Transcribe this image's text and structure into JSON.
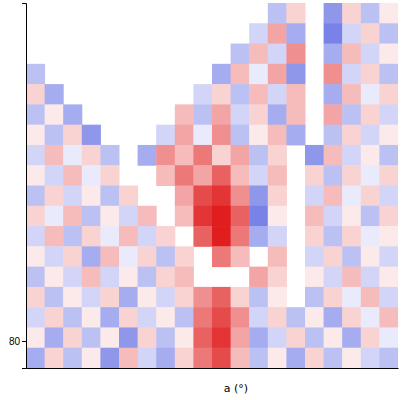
{
  "chart_data": {
    "type": "heatmap",
    "xlabel": "a (°)",
    "xlim": [
      0,
      40
    ],
    "ylim": [
      78,
      105
    ],
    "xticks": [],
    "yticks": [
      80
    ],
    "tick_labels": "y",
    "color_range": [
      -1,
      1
    ],
    "x": [
      1,
      3,
      5,
      7,
      9,
      11,
      13,
      15,
      17,
      19,
      21,
      23,
      25,
      27,
      29,
      31,
      33,
      35,
      37,
      39
    ],
    "y": [
      104.25,
      102.75,
      101.25,
      99.75,
      98.25,
      96.75,
      95.25,
      93.75,
      92.25,
      90.75,
      89.25,
      87.75,
      86.25,
      84.75,
      83.25,
      81.75,
      80.25,
      78.75
    ],
    "values": [
      [
        null,
        null,
        null,
        null,
        null,
        null,
        null,
        null,
        null,
        null,
        null,
        null,
        null,
        -0.3,
        0.2,
        null,
        -0.5,
        0.2,
        -0.3,
        0.1
      ],
      [
        null,
        null,
        null,
        null,
        null,
        null,
        null,
        null,
        null,
        null,
        null,
        null,
        -0.2,
        0.4,
        -0.4,
        null,
        -0.6,
        -0.2,
        0.2,
        -0.3
      ],
      [
        null,
        null,
        null,
        null,
        null,
        null,
        null,
        null,
        null,
        null,
        null,
        -0.3,
        0.3,
        -0.2,
        0.5,
        null,
        -0.4,
        0.3,
        -0.2,
        0.1
      ],
      [
        -0.3,
        null,
        null,
        null,
        null,
        null,
        null,
        null,
        null,
        null,
        -0.4,
        0.3,
        -0.1,
        0.4,
        -0.5,
        null,
        0.5,
        -0.2,
        0.2,
        -0.3
      ],
      [
        0.2,
        -0.4,
        null,
        null,
        null,
        null,
        null,
        null,
        null,
        -0.2,
        0.2,
        -0.3,
        0.3,
        -0.2,
        0.3,
        null,
        -0.4,
        0.3,
        -0.1,
        0.2
      ],
      [
        -0.3,
        0.1,
        -0.4,
        null,
        null,
        null,
        null,
        null,
        0.3,
        -0.3,
        0.4,
        -0.2,
        0.2,
        -0.4,
        0.3,
        null,
        0.4,
        -0.3,
        0.2,
        -0.2
      ],
      [
        0.1,
        -0.3,
        0.2,
        -0.5,
        null,
        null,
        null,
        -0.2,
        0.4,
        -0.1,
        0.5,
        -0.3,
        0.1,
        0.3,
        -0.4,
        null,
        -0.3,
        0.2,
        -0.2,
        0.1
      ],
      [
        -0.2,
        0.3,
        -0.1,
        0.2,
        -0.3,
        null,
        -0.4,
        0.5,
        0.3,
        0.6,
        0.2,
        0.4,
        -0.3,
        0.2,
        null,
        -0.5,
        0.3,
        -0.2,
        0.1,
        -0.3
      ],
      [
        0.1,
        -0.2,
        0.3,
        -0.1,
        0.2,
        null,
        null,
        0.3,
        0.6,
        0.4,
        0.7,
        0.3,
        -0.2,
        0.3,
        null,
        0.2,
        -0.3,
        0.2,
        -0.1,
        0.2
      ],
      [
        -0.3,
        0.2,
        -0.2,
        0.1,
        -0.3,
        0.2,
        null,
        null,
        0.4,
        0.8,
        0.9,
        0.5,
        -0.5,
        0.2,
        null,
        -0.2,
        0.3,
        -0.1,
        0.2,
        -0.2
      ],
      [
        0.2,
        -0.1,
        0.3,
        -0.3,
        0.1,
        -0.2,
        0.3,
        null,
        0.3,
        0.9,
        1.0,
        0.7,
        -0.6,
        0.1,
        null,
        0.3,
        -0.2,
        0.1,
        -0.3,
        0.2
      ],
      [
        -0.2,
        0.3,
        -0.3,
        0.2,
        -0.1,
        0.3,
        -0.2,
        0.2,
        null,
        0.7,
        1.0,
        0.6,
        -0.4,
        -0.2,
        null,
        0.2,
        -0.3,
        0.2,
        -0.1,
        0.1
      ],
      [
        0.1,
        -0.2,
        0.2,
        -0.4,
        0.3,
        -0.1,
        0.2,
        -0.3,
        0.2,
        null,
        0.6,
        0.3,
        null,
        0.3,
        null,
        -0.2,
        0.2,
        -0.3,
        0.1,
        -0.2
      ],
      [
        -0.3,
        0.1,
        -0.2,
        0.3,
        -0.2,
        0.1,
        -0.3,
        0.2,
        0.3,
        null,
        null,
        null,
        0.4,
        0.2,
        null,
        0.1,
        -0.2,
        0.3,
        -0.2,
        0.1
      ],
      [
        0.2,
        -0.3,
        0.1,
        -0.2,
        0.2,
        -0.4,
        0.1,
        -0.2,
        0.2,
        0.5,
        0.7,
        0.2,
        -0.3,
        0.1,
        null,
        -0.3,
        0.2,
        -0.1,
        0.3,
        -0.2
      ],
      [
        -0.2,
        0.2,
        -0.3,
        0.1,
        -0.4,
        0.2,
        -0.2,
        0.1,
        -0.3,
        0.6,
        0.8,
        0.5,
        -0.2,
        0.2,
        -0.3,
        0.1,
        -0.4,
        0.2,
        -0.1,
        0.3
      ],
      [
        0.1,
        -0.4,
        0.2,
        -0.3,
        0.1,
        -0.5,
        0.2,
        -0.3,
        0.1,
        0.7,
        0.9,
        0.4,
        -0.4,
        -0.2,
        0.2,
        -0.3,
        0.1,
        -0.4,
        0.2,
        -0.1
      ],
      [
        -0.4,
        0.2,
        -0.3,
        0.1,
        -0.5,
        0.3,
        -0.2,
        -0.4,
        0.2,
        0.6,
        0.8,
        0.3,
        -0.3,
        0.1,
        -0.4,
        0.2,
        -0.3,
        0.1,
        -0.2,
        -0.3
      ]
    ]
  }
}
